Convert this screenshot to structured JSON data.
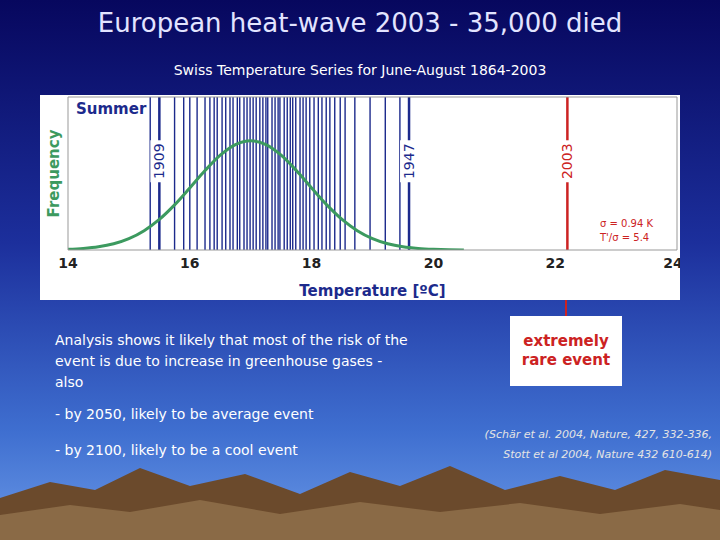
{
  "chart_data": {
    "type": "line",
    "title": "European heat-wave 2003 - 35,000 died",
    "subtitle": "Swiss Temperature Series for June-August 1864-2003",
    "x_label": "Temperature [ºC]",
    "y_label": "Frequency",
    "x": [
      14,
      14.25,
      14.5,
      14.75,
      15,
      15.25,
      15.5,
      15.75,
      16,
      16.25,
      16.5,
      16.75,
      17,
      17.25,
      17.5,
      17.75,
      18,
      18.25,
      18.5,
      18.75,
      19,
      19.25,
      19.5,
      19.75,
      20,
      20.25,
      20.5
    ],
    "values": [
      0.006,
      0.014,
      0.029,
      0.057,
      0.104,
      0.177,
      0.28,
      0.413,
      0.568,
      0.727,
      0.868,
      0.965,
      1,
      0.965,
      0.868,
      0.727,
      0.568,
      0.413,
      0.28,
      0.177,
      0.104,
      0.057,
      0.029,
      0.014,
      0.006,
      0.002,
      0.001
    ],
    "color": "#3c9a5f",
    "xlim": [
      14,
      24
    ],
    "xticks": [
      14,
      16,
      18,
      20,
      22,
      24
    ],
    "ylim": [
      0,
      1.4
    ],
    "tick_labels": "x",
    "years": {
      "values": [
        15.35,
        15.75,
        15.9,
        16.0,
        16.12,
        16.25,
        16.33,
        16.4,
        16.45,
        16.53,
        16.59,
        16.66,
        16.71,
        16.78,
        16.82,
        16.89,
        16.94,
        16.99,
        17.04,
        17.09,
        17.15,
        17.2,
        17.25,
        17.28,
        17.35,
        17.4,
        17.45,
        17.48,
        17.55,
        17.6,
        17.65,
        17.69,
        17.74,
        17.81,
        17.86,
        17.91,
        17.97,
        18.04,
        18.11,
        18.17,
        18.24,
        18.3,
        18.38,
        18.47,
        18.55,
        18.71,
        18.96,
        19.21,
        19.45
      ],
      "color": "#1c2a8c"
    },
    "highlights": [
      {
        "value": 15.5,
        "label": "1909",
        "color": "#1c2a8c"
      },
      {
        "value": 19.6,
        "label": "1947",
        "color": "#1c2a8c"
      },
      {
        "value": 22.2,
        "label": "2003",
        "color": "#cc2222"
      }
    ],
    "annotations": [
      {
        "text": "Summer",
        "color": "#1c2a8c"
      },
      {
        "text": "σ = 0.94 K",
        "color": "#cc2222"
      },
      {
        "text": "T'/σ = 5.4",
        "color": "#cc2222"
      }
    ]
  },
  "slide": {
    "notes": [
      "Analysis shows it likely that most of the risk of the event is due to increase in greenhouse gases - also",
      "- by 2050, likely to be average event",
      "- by 2100, likely to be a cool event"
    ],
    "callout": "extremely rare event",
    "citation": [
      "(Schär et al. 2004, Nature, 427, 332-336,",
      "Stott et al 2004, Nature 432 610-614)"
    ]
  }
}
